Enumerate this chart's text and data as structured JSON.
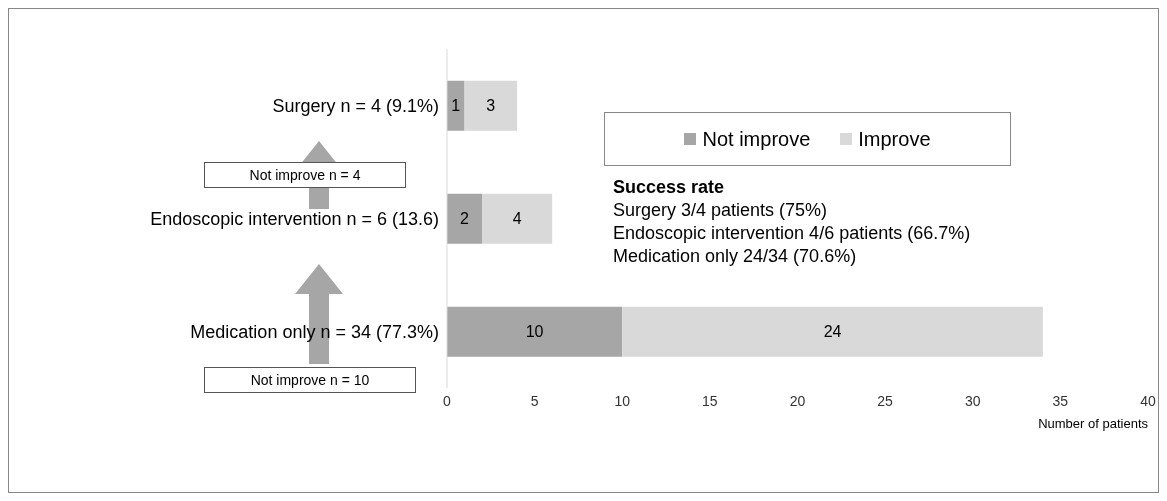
{
  "chart_data": {
    "type": "bar",
    "orientation": "horizontal",
    "stacked": true,
    "categories": [
      "Surgery n = 4 (9.1%)",
      "Endoscopic intervention n = 6 (13.6)",
      "Medication only n = 34 (77.3%)"
    ],
    "series": [
      {
        "name": "Not improve",
        "color": "#a6a6a6",
        "values": [
          1,
          2,
          10
        ]
      },
      {
        "name": "Improve",
        "color": "#d9d9d9",
        "values": [
          3,
          4,
          24
        ]
      }
    ],
    "xlim": [
      0,
      40
    ],
    "xticks": [
      0,
      5,
      10,
      15,
      20,
      25,
      30,
      35,
      40
    ],
    "xlabel": "Number of patients",
    "data_labels": true,
    "legend": "top right",
    "grid": false,
    "annotations": [
      "Success rate",
      "Surgery 3/4 patients (75%)",
      "Endoscopic intervention 4/6 patients (66.7%)",
      "Medication only 24/34 (70.6%)",
      "Not improve n = 4",
      "Not improve n = 10"
    ]
  }
}
